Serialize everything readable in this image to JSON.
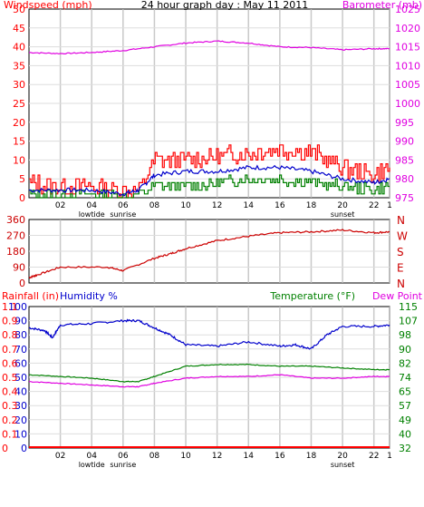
{
  "chart_data": [
    {
      "type": "line",
      "title": "24 hour graph day : May 11 2011",
      "ylabel": "Windspeed (mph)",
      "y2label": "Barometer (mb)",
      "ylim": [
        0,
        50
      ],
      "y2lim": [
        975,
        1025
      ],
      "x_ticks": [
        "02",
        "04",
        "06",
        "08",
        "10",
        "12",
        "14",
        "16",
        "18",
        "20",
        "22",
        "1"
      ],
      "x_annotations": [
        "lowtide",
        "sunrise",
        "sunset"
      ],
      "yticks": [
        "0",
        "5",
        "10",
        "15",
        "20",
        "25",
        "30",
        "35",
        "40",
        "45",
        "50"
      ],
      "y2ticks": [
        "975",
        "980",
        "985",
        "990",
        "995",
        "1000",
        "1005",
        "1010",
        "1015",
        "1020",
        "1025"
      ],
      "grid": true,
      "series": [
        {
          "name": "Windspeed (mph)",
          "color": "#ff0000",
          "axis": "left",
          "x": [
            0,
            2,
            4,
            6,
            7,
            8,
            10,
            12,
            14,
            16,
            18,
            20,
            22,
            23
          ],
          "values": [
            4,
            3,
            3,
            2,
            2,
            10,
            10,
            11,
            12,
            13,
            12,
            8,
            6,
            8
          ]
        },
        {
          "axis": "left",
          "color": "#0000cc",
          "x": [
            0,
            2,
            4,
            6,
            7,
            8,
            10,
            12,
            14,
            16,
            18,
            20,
            22,
            23
          ],
          "values": [
            2,
            2,
            2,
            1,
            2,
            6,
            7,
            7,
            8,
            8,
            7,
            5,
            4,
            5
          ]
        },
        {
          "axis": "left",
          "color": "#008000",
          "x": [
            0,
            2,
            4,
            6,
            7,
            8,
            10,
            12,
            14,
            16,
            18,
            20,
            22,
            23
          ],
          "values": [
            1,
            1,
            1,
            0,
            1,
            3,
            3,
            4,
            5,
            5,
            4,
            3,
            2,
            3
          ]
        },
        {
          "name": "Barometer (mb)",
          "color": "#e000e0",
          "axis": "right",
          "x": [
            0,
            2,
            4,
            6,
            8,
            10,
            12,
            14,
            16,
            18,
            20,
            22,
            23
          ],
          "values": [
            1013.5,
            1013.2,
            1013.5,
            1014,
            1015,
            1016,
            1016.5,
            1016,
            1015,
            1014.8,
            1014.2,
            1014.5,
            1014.5
          ]
        }
      ]
    },
    {
      "type": "line",
      "y_ticks": [
        "360",
        "270",
        "180",
        "90",
        "0"
      ],
      "y2labels": [
        "N",
        "W",
        "S",
        "E",
        "N"
      ],
      "ylim": [
        0,
        360
      ],
      "grid": true,
      "series": [
        {
          "color": "#cc0000",
          "x": [
            0,
            0.5,
            2,
            5,
            6,
            8,
            9,
            10,
            12,
            14,
            16,
            18,
            20,
            22,
            23
          ],
          "values": [
            30,
            45,
            90,
            90,
            70,
            140,
            165,
            195,
            240,
            265,
            285,
            290,
            300,
            285,
            290
          ]
        }
      ]
    },
    {
      "type": "line",
      "ylabel": "Rainfall (in)",
      "ylabel2": "Humidity %",
      "y2label": "Temperature (°F)",
      "y2label2": "Dew Point",
      "ylim": [
        0,
        100
      ],
      "y2lim": [
        32,
        115
      ],
      "rain_ticks": [
        "0",
        "0.1",
        "0.2",
        "0.3",
        "0.4",
        "0.5",
        "0.6",
        "0.7",
        "0.8",
        "0.9",
        "1.1",
        "1"
      ],
      "humidity_ticks": [
        "0",
        "10",
        "20",
        "30",
        "40",
        "50",
        "60",
        "70",
        "80",
        "90",
        "100"
      ],
      "temp_ticks": [
        "32",
        "40",
        "49",
        "57",
        "65",
        "74",
        "82",
        "90",
        "98",
        "107",
        "115"
      ],
      "grid": true,
      "series": [
        {
          "name": "Humidity %",
          "color": "#0000cc",
          "axis": "humidity",
          "x": [
            0,
            1,
            1.5,
            2,
            4,
            6,
            7,
            8,
            9,
            10,
            12,
            14,
            16,
            17,
            18,
            19,
            20,
            22,
            23
          ],
          "values": [
            85,
            83,
            78,
            87,
            88,
            90,
            90,
            85,
            80,
            73,
            72,
            75,
            72,
            73,
            70,
            80,
            86,
            86,
            87
          ]
        },
        {
          "name": "Temperature (°F)",
          "color": "#008000",
          "axis": "temp",
          "x": [
            0,
            2,
            4,
            6,
            7,
            8,
            10,
            12,
            14,
            16,
            18,
            20,
            22,
            23
          ],
          "values": [
            75,
            74,
            73,
            71,
            71,
            74,
            80,
            81,
            81,
            80,
            80,
            79,
            78,
            78
          ]
        },
        {
          "name": "Dew Point",
          "color": "#e000e0",
          "axis": "temp",
          "x": [
            0,
            2,
            4,
            6,
            7,
            8,
            10,
            12,
            14,
            16,
            18,
            20,
            22,
            23
          ],
          "values": [
            71,
            70,
            69,
            68,
            68,
            70,
            73,
            74,
            74,
            75,
            73,
            73,
            74,
            74
          ]
        },
        {
          "name": "Rainfall (in)",
          "color": "#ff0000",
          "axis": "humidity",
          "x": [
            0,
            23
          ],
          "values": [
            0,
            0
          ]
        }
      ]
    }
  ]
}
